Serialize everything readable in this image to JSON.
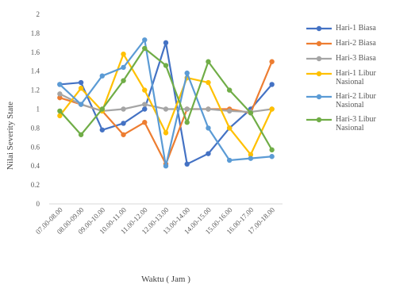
{
  "chart_data": {
    "type": "line",
    "xlabel": "Waktu ( Jam )",
    "ylabel": "Nilai Severity State",
    "ylim": [
      0,
      2
    ],
    "yticks": [
      0,
      0.2,
      0.4,
      0.6,
      0.8,
      1,
      1.2,
      1.4,
      1.6,
      1.8,
      2
    ],
    "categories": [
      "07.00-08.00",
      "08.00-09.00",
      "09.00-10.00",
      "10.00-11.00",
      "11.00-12.00",
      "12.00-13.00",
      "13.00-14.00",
      "14.00-15.00",
      "15.00-16.00",
      "16.00-17.00",
      "17.00-18.00"
    ],
    "series": [
      {
        "name": "Hari-1 Biasa",
        "color": "#4472c4",
        "values": [
          1.26,
          1.28,
          0.78,
          0.85,
          1.0,
          1.7,
          0.42,
          0.53,
          0.8,
          1.0,
          1.26
        ]
      },
      {
        "name": "Hari-2 Biasa",
        "color": "#ed7d31",
        "values": [
          1.12,
          1.05,
          0.98,
          0.73,
          0.86,
          0.42,
          1.0,
          1.0,
          1.0,
          0.96,
          1.5
        ]
      },
      {
        "name": "Hari-3 Biasa",
        "color": "#a5a5a5",
        "values": [
          1.16,
          1.05,
          0.98,
          1.0,
          1.05,
          1.0,
          1.0,
          1.0,
          0.98,
          0.97,
          1.0
        ]
      },
      {
        "name": "Hari-1 Libur Nasional",
        "color": "#ffc000",
        "values": [
          0.93,
          1.22,
          0.98,
          1.58,
          1.2,
          0.75,
          1.33,
          1.28,
          0.8,
          0.52,
          1.0
        ]
      },
      {
        "name": "Hari-2 Libur Nasional",
        "color": "#5b9bd5",
        "values": [
          1.26,
          1.05,
          1.35,
          1.44,
          1.73,
          0.4,
          1.38,
          0.8,
          0.46,
          0.48,
          0.5
        ]
      },
      {
        "name": "Hari-3 Libur Nasional",
        "color": "#70ad47",
        "values": [
          0.98,
          0.73,
          1.0,
          1.3,
          1.64,
          1.46,
          0.86,
          1.5,
          1.2,
          0.96,
          0.57
        ]
      }
    ]
  }
}
